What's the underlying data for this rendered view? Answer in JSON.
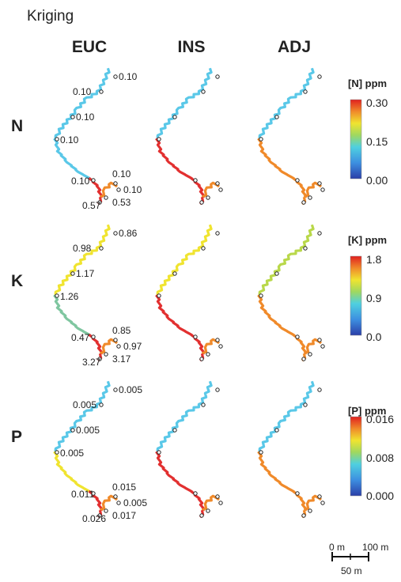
{
  "title": "Kriging",
  "columns": [
    "EUC",
    "INS",
    "ADJ"
  ],
  "rows": [
    {
      "id": "N",
      "label": "N",
      "legend": {
        "title": "[N] ppm",
        "max": "0.30",
        "mid": "0.15",
        "min": "0.00"
      },
      "euc_labels": [
        "0.10",
        "0.10",
        "0.10",
        "0.10",
        "0.10",
        "0.10",
        "0.10",
        "0.57",
        "0.53"
      ]
    },
    {
      "id": "K",
      "label": "K",
      "legend": {
        "title": "[K] ppm",
        "max": "1.8",
        "mid": "0.9",
        "min": "0.0"
      },
      "euc_labels": [
        "0.86",
        "0.98",
        "1.17",
        "1.26",
        "0.47",
        "0.85",
        "0.97",
        "3.27",
        "3.17"
      ]
    },
    {
      "id": "P",
      "label": "P",
      "legend": {
        "title": "[P] ppm",
        "max": "0.016",
        "mid": "0.008",
        "min": "0.000"
      },
      "euc_labels": [
        "0.005",
        "0.005",
        "0.005",
        "0.005",
        "0.011",
        "0.015",
        "0.005",
        "0.026",
        "0.017"
      ]
    }
  ],
  "scale_bar": {
    "left": "0 m",
    "right": "100 m",
    "mid": "50 m"
  },
  "colors": {
    "blue": "#5ac8e8",
    "yellow": "#f0e430",
    "orange": "#f08a2a",
    "red": "#e23030",
    "lime": "#b9d84a",
    "teal": "#7fc6a0"
  }
}
